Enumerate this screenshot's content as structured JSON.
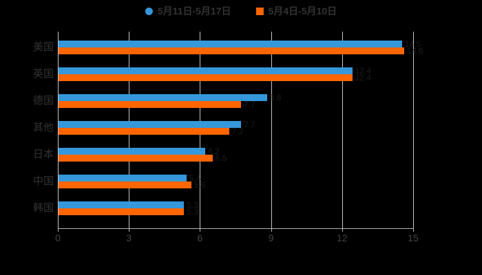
{
  "chart_data": {
    "type": "bar",
    "orientation": "horizontal",
    "title": "",
    "categories": [
      "美国",
      "英国",
      "德国",
      "其他",
      "日本",
      "中国",
      "韩国"
    ],
    "series": [
      {
        "name": "5月11日-5月17日",
        "color": "#3498db",
        "marker": "circle",
        "values": [
          14.5,
          12.4,
          8.8,
          7.7,
          6.2,
          5.4,
          5.3
        ]
      },
      {
        "name": "5月4日-5月10日",
        "color": "#ff6600",
        "marker": "square",
        "values": [
          14.6,
          12.4,
          7.7,
          7.2,
          6.5,
          5.6,
          5.3
        ]
      }
    ],
    "xlabel": "",
    "ylabel": "",
    "xlim": [
      0,
      15
    ],
    "x_ticks": [
      0,
      3,
      6,
      9,
      12,
      15
    ],
    "grid": true,
    "legend_position": "top",
    "value_labels_visible_color": "#1d1d1d",
    "background_color": "#000000",
    "text_color": "#333333",
    "gridline_color": "#c9c9c9",
    "axis_color": "#b5b5b5"
  }
}
